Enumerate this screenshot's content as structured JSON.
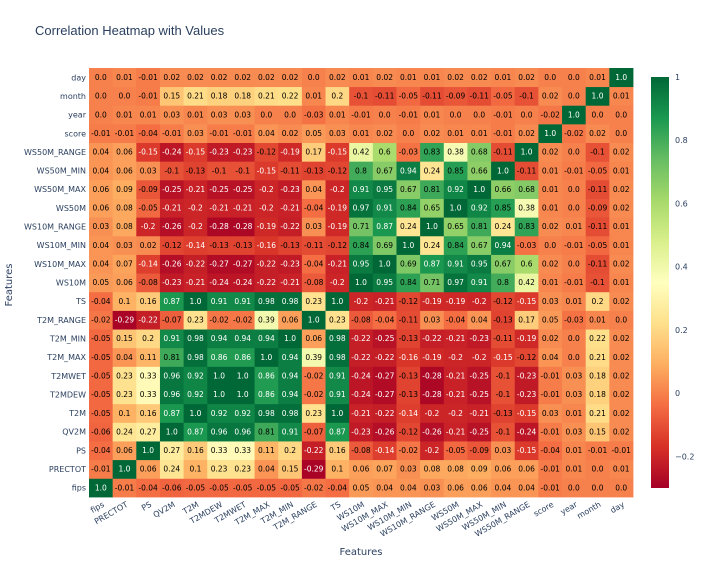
{
  "chart_data": {
    "type": "heatmap",
    "title": "Correlation Heatmap with Values",
    "xlabel": "Features",
    "ylabel": "Features",
    "colorscale": "RdYlGn",
    "zrange": [
      -0.3,
      1.0
    ],
    "colorbar_ticks": [
      -0.2,
      0,
      0.2,
      0.4,
      0.6,
      0.8,
      1
    ],
    "x_categories": [
      "fips",
      "PRECTOT",
      "PS",
      "QV2M",
      "T2M",
      "T2MDEW",
      "T2MWET",
      "T2M_MAX",
      "T2M_MIN",
      "T2M_RANGE",
      "TS",
      "WS10M",
      "WS10M_MAX",
      "WS10M_MIN",
      "WS10M_RANGE",
      "WS50M",
      "WS50M_MAX",
      "WS50M_MIN",
      "WS50M_RANGE",
      "score",
      "year",
      "month",
      "day"
    ],
    "y_categories": [
      "fips",
      "PRECTOT",
      "PS",
      "QV2M",
      "T2M",
      "T2MDEW",
      "T2MWET",
      "T2M_MAX",
      "T2M_MIN",
      "T2M_RANGE",
      "TS",
      "WS10M",
      "WS10M_MAX",
      "WS10M_MIN",
      "WS10M_RANGE",
      "WS50M",
      "WS50M_MAX",
      "WS50M_MIN",
      "WS50M_RANGE",
      "score",
      "year",
      "month",
      "day"
    ],
    "values": [
      [
        1.0,
        -0.01,
        -0.04,
        -0.06,
        -0.05,
        -0.05,
        -0.05,
        -0.05,
        -0.05,
        -0.02,
        -0.04,
        0.05,
        0.04,
        0.04,
        0.03,
        0.06,
        0.06,
        0.04,
        0.04,
        -0.01,
        0.0,
        -0.0,
        0.0
      ],
      [
        -0.01,
        1.0,
        0.06,
        0.24,
        0.1,
        0.23,
        0.23,
        0.04,
        0.15,
        -0.29,
        0.1,
        0.06,
        0.07,
        0.03,
        0.08,
        0.08,
        0.09,
        0.06,
        0.06,
        -0.01,
        0.01,
        0.0,
        0.01
      ],
      [
        -0.04,
        0.06,
        1.0,
        0.27,
        0.16,
        0.33,
        0.33,
        0.11,
        0.2,
        -0.22,
        0.16,
        -0.08,
        -0.14,
        -0.02,
        -0.2,
        -0.05,
        -0.09,
        0.03,
        -0.15,
        -0.04,
        0.01,
        -0.01,
        -0.01
      ],
      [
        -0.06,
        0.24,
        0.27,
        1.0,
        0.87,
        0.96,
        0.96,
        0.81,
        0.91,
        -0.07,
        0.87,
        -0.23,
        -0.26,
        -0.12,
        -0.26,
        -0.21,
        -0.25,
        -0.1,
        -0.24,
        -0.01,
        0.03,
        0.15,
        0.02
      ],
      [
        -0.05,
        0.1,
        0.16,
        0.87,
        1.0,
        0.92,
        0.92,
        0.98,
        0.98,
        0.23,
        1.0,
        -0.21,
        -0.22,
        -0.14,
        -0.2,
        -0.2,
        -0.21,
        -0.13,
        -0.15,
        0.03,
        0.01,
        0.21,
        0.02
      ],
      [
        -0.05,
        0.23,
        0.33,
        0.96,
        0.92,
        1.0,
        1.0,
        0.86,
        0.94,
        -0.02,
        0.91,
        -0.24,
        -0.27,
        -0.13,
        -0.28,
        -0.21,
        -0.25,
        -0.1,
        -0.23,
        -0.01,
        0.03,
        0.18,
        0.02
      ],
      [
        -0.05,
        0.23,
        0.33,
        0.96,
        0.92,
        1.0,
        1.0,
        0.86,
        0.94,
        -0.02,
        0.91,
        -0.24,
        -0.27,
        -0.13,
        -0.28,
        -0.21,
        -0.25,
        -0.1,
        -0.23,
        -0.01,
        0.03,
        0.18,
        0.02
      ],
      [
        -0.05,
        0.04,
        0.11,
        0.81,
        0.98,
        0.86,
        0.86,
        1.0,
        0.94,
        0.39,
        0.98,
        -0.22,
        -0.22,
        -0.16,
        -0.19,
        -0.2,
        -0.2,
        -0.15,
        -0.12,
        0.04,
        0.0,
        0.21,
        0.02
      ],
      [
        -0.05,
        0.15,
        0.2,
        0.91,
        0.98,
        0.94,
        0.94,
        0.94,
        1.0,
        0.06,
        0.98,
        -0.22,
        -0.25,
        -0.13,
        -0.22,
        -0.21,
        -0.23,
        -0.11,
        -0.19,
        0.02,
        0.0,
        0.22,
        0.02
      ],
      [
        -0.02,
        -0.29,
        -0.22,
        -0.07,
        0.23,
        -0.02,
        -0.02,
        0.39,
        0.06,
        1.0,
        0.23,
        -0.08,
        -0.04,
        -0.11,
        0.03,
        -0.04,
        0.04,
        -0.13,
        0.17,
        0.05,
        -0.03,
        0.01,
        -0.0
      ],
      [
        -0.04,
        0.1,
        0.16,
        0.87,
        1.0,
        0.91,
        0.91,
        0.98,
        0.98,
        0.23,
        1.0,
        -0.2,
        -0.21,
        -0.12,
        -0.19,
        -0.19,
        -0.2,
        -0.12,
        -0.15,
        0.03,
        0.01,
        0.2,
        0.02
      ],
      [
        0.05,
        0.06,
        -0.08,
        -0.23,
        -0.21,
        -0.24,
        -0.24,
        -0.22,
        -0.21,
        -0.08,
        -0.2,
        1.0,
        0.95,
        0.84,
        0.71,
        0.97,
        0.91,
        0.8,
        0.42,
        0.01,
        -0.01,
        -0.1,
        0.01
      ],
      [
        0.04,
        0.07,
        -0.14,
        -0.26,
        -0.22,
        -0.27,
        -0.27,
        -0.22,
        -0.23,
        -0.04,
        -0.21,
        0.95,
        1.0,
        0.69,
        0.87,
        0.91,
        0.95,
        0.67,
        0.6,
        0.02,
        -0.0,
        -0.11,
        0.02
      ],
      [
        0.04,
        0.03,
        0.02,
        -0.12,
        -0.14,
        -0.13,
        -0.13,
        -0.16,
        -0.13,
        -0.11,
        -0.12,
        0.84,
        0.69,
        1.0,
        0.24,
        0.84,
        0.67,
        0.94,
        -0.03,
        -0.0,
        -0.01,
        -0.05,
        0.01
      ],
      [
        0.03,
        0.08,
        -0.2,
        -0.26,
        -0.2,
        -0.28,
        -0.28,
        -0.19,
        -0.22,
        0.03,
        -0.19,
        0.71,
        0.87,
        0.24,
        1.0,
        0.65,
        0.81,
        0.24,
        0.83,
        0.02,
        0.01,
        -0.11,
        0.01
      ],
      [
        0.06,
        0.08,
        -0.05,
        -0.21,
        -0.2,
        -0.21,
        -0.21,
        -0.2,
        -0.21,
        -0.04,
        -0.19,
        0.97,
        0.91,
        0.84,
        0.65,
        1.0,
        0.92,
        0.85,
        0.38,
        0.01,
        -0.0,
        -0.09,
        0.02
      ],
      [
        0.06,
        0.09,
        -0.09,
        -0.25,
        -0.21,
        -0.25,
        -0.25,
        -0.2,
        -0.23,
        0.04,
        -0.2,
        0.91,
        0.95,
        0.67,
        0.81,
        0.92,
        1.0,
        0.66,
        0.68,
        0.01,
        -0.0,
        -0.11,
        0.02
      ],
      [
        0.04,
        0.06,
        0.03,
        -0.1,
        -0.13,
        -0.1,
        -0.1,
        -0.15,
        -0.11,
        -0.13,
        -0.12,
        0.8,
        0.67,
        0.94,
        0.24,
        0.85,
        0.66,
        1.0,
        -0.11,
        0.01,
        -0.01,
        -0.05,
        0.01
      ],
      [
        0.04,
        0.06,
        -0.15,
        -0.24,
        -0.15,
        -0.23,
        -0.23,
        -0.12,
        -0.19,
        0.17,
        -0.15,
        0.42,
        0.6,
        -0.03,
        0.83,
        0.38,
        0.68,
        -0.11,
        1.0,
        0.02,
        0.0,
        -0.1,
        0.02
      ],
      [
        -0.01,
        -0.01,
        -0.04,
        -0.01,
        0.03,
        -0.01,
        -0.01,
        0.04,
        0.02,
        0.05,
        0.03,
        0.01,
        0.02,
        -0.0,
        0.02,
        0.01,
        0.01,
        -0.01,
        0.02,
        1.0,
        -0.02,
        0.02,
        -0.0
      ],
      [
        0.0,
        0.01,
        0.01,
        0.03,
        0.01,
        0.03,
        0.03,
        0.0,
        0.0,
        -0.03,
        0.01,
        -0.01,
        -0.0,
        -0.01,
        0.01,
        -0.0,
        -0.0,
        -0.01,
        0.0,
        -0.02,
        1.0,
        -0.0,
        -0.0
      ],
      [
        -0.0,
        0.0,
        -0.01,
        0.15,
        0.21,
        0.18,
        0.18,
        0.21,
        0.22,
        0.01,
        0.2,
        -0.1,
        -0.11,
        -0.05,
        -0.11,
        -0.09,
        -0.11,
        -0.05,
        -0.1,
        0.02,
        -0.0,
        1.0,
        0.01
      ],
      [
        0.0,
        0.01,
        -0.01,
        0.02,
        0.02,
        0.02,
        0.02,
        0.02,
        0.02,
        -0.0,
        0.02,
        0.01,
        0.02,
        0.01,
        0.01,
        0.02,
        0.02,
        0.01,
        0.02,
        -0.0,
        -0.0,
        0.01,
        1.0
      ]
    ]
  }
}
